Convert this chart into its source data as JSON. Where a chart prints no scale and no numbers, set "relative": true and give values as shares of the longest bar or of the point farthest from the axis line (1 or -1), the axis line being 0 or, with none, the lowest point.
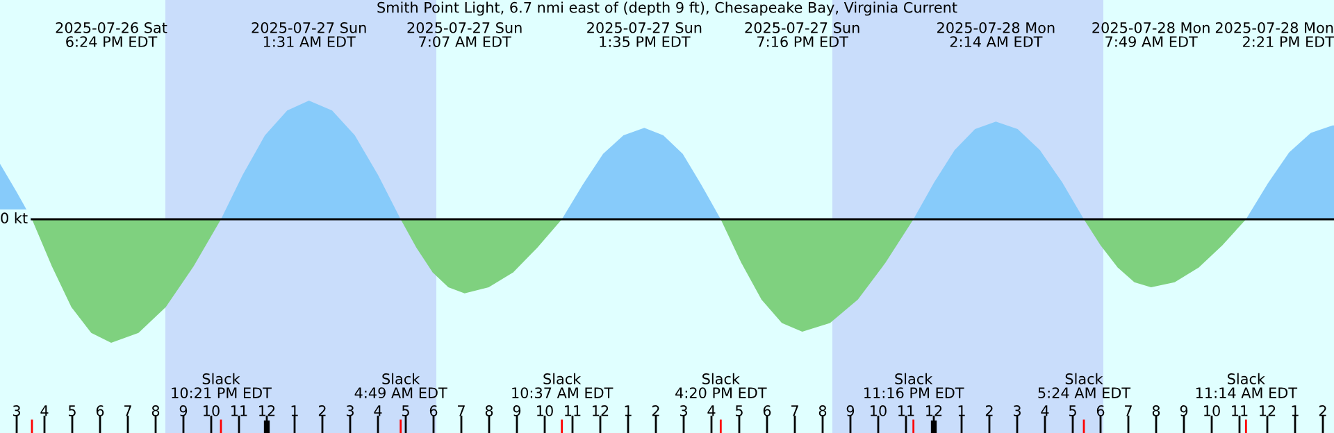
{
  "chart_data": {
    "type": "area",
    "title": "Smith Point Light, 6.7 nmi east of (depth 9 ft), Chesapeake Bay, Virginia Current",
    "relative": true,
    "x": [
      "2025-07-26T14:24",
      "2025-07-26T15:00",
      "2025-07-26T15:33",
      "2025-07-26T16:16",
      "2025-07-26T16:58",
      "2025-07-26T17:41",
      "2025-07-26T18:24",
      "2025-07-26T19:23",
      "2025-07-26T20:22",
      "2025-07-26T21:22",
      "2025-07-26T22:21",
      "2025-07-26T23:08",
      "2025-07-26T23:56",
      "2025-07-27T00:44",
      "2025-07-27T01:31",
      "2025-07-27T02:21",
      "2025-07-27T03:10",
      "2025-07-27T04:00",
      "2025-07-27T04:49",
      "2025-07-27T05:23",
      "2025-07-27T05:58",
      "2025-07-27T06:32",
      "2025-07-27T07:07",
      "2025-07-27T07:59",
      "2025-07-27T08:52",
      "2025-07-27T09:44",
      "2025-07-27T10:37",
      "2025-07-27T11:22",
      "2025-07-27T12:06",
      "2025-07-27T12:50",
      "2025-07-27T13:35",
      "2025-07-27T14:16",
      "2025-07-27T14:58",
      "2025-07-27T15:38",
      "2025-07-27T16:20",
      "2025-07-27T17:04",
      "2025-07-27T17:48",
      "2025-07-27T18:32",
      "2025-07-27T19:16",
      "2025-07-27T20:16",
      "2025-07-27T21:16",
      "2025-07-27T22:16",
      "2025-07-27T23:16",
      "2025-07-28T00:01",
      "2025-07-28T00:45",
      "2025-07-28T01:29",
      "2025-07-28T02:14",
      "2025-07-28T03:01",
      "2025-07-28T03:49",
      "2025-07-28T04:37",
      "2025-07-28T05:24",
      "2025-07-28T06:00",
      "2025-07-28T06:37",
      "2025-07-28T07:13",
      "2025-07-28T07:49",
      "2025-07-28T08:40",
      "2025-07-28T09:32",
      "2025-07-28T10:23",
      "2025-07-28T11:14",
      "2025-07-28T12:01",
      "2025-07-28T12:47",
      "2025-07-28T13:34",
      "2025-07-28T14:21",
      "2025-07-28T14:24"
    ],
    "series": [
      {
        "color": "#87cbfa",
        "values": [
          0.45,
          0.22,
          0,
          null,
          null,
          null,
          null,
          null,
          null,
          null,
          0,
          0.36,
          0.68,
          0.88,
          0.96,
          0.88,
          0.68,
          0.36,
          0,
          null,
          null,
          null,
          null,
          null,
          null,
          null,
          0,
          0.28,
          0.53,
          0.68,
          0.74,
          0.68,
          0.53,
          0.28,
          0,
          null,
          null,
          null,
          null,
          null,
          null,
          null,
          0,
          0.3,
          0.56,
          0.73,
          0.79,
          0.73,
          0.56,
          0.3,
          0,
          null,
          null,
          null,
          null,
          null,
          null,
          null,
          0,
          0.29,
          0.54,
          0.7,
          0.76,
          0.76
        ]
      },
      {
        "color": "#7fd17f",
        "values": [
          null,
          null,
          0,
          -0.38,
          -0.71,
          -0.92,
          -1,
          -0.92,
          -0.71,
          -0.38,
          0,
          null,
          null,
          null,
          null,
          null,
          null,
          null,
          0,
          -0.23,
          -0.43,
          -0.55,
          -0.6,
          -0.55,
          -0.43,
          -0.23,
          0,
          null,
          null,
          null,
          null,
          null,
          null,
          null,
          0,
          -0.35,
          -0.65,
          -0.84,
          -0.91,
          -0.84,
          -0.65,
          -0.35,
          0,
          null,
          null,
          null,
          null,
          null,
          null,
          null,
          0,
          -0.21,
          -0.39,
          -0.51,
          -0.55,
          -0.51,
          -0.39,
          -0.21,
          0,
          null,
          null,
          null,
          null,
          null
        ]
      }
    ],
    "xlim": [
      "2025-07-26T14:24",
      "2025-07-28T14:24"
    ],
    "xticks": [
      {
        "value": "2025-07-26T15:00",
        "label": "3"
      },
      {
        "value": "2025-07-26T16:00",
        "label": "4"
      },
      {
        "value": "2025-07-26T17:00",
        "label": "5"
      },
      {
        "value": "2025-07-26T18:00",
        "label": "6"
      },
      {
        "value": "2025-07-26T19:00",
        "label": "7"
      },
      {
        "value": "2025-07-26T20:00",
        "label": "8"
      },
      {
        "value": "2025-07-26T21:00",
        "label": "9"
      },
      {
        "value": "2025-07-26T22:00",
        "label": "10"
      },
      {
        "value": "2025-07-26T23:00",
        "label": "11"
      },
      {
        "value": "2025-07-27T00:00",
        "label": "12"
      },
      {
        "value": "2025-07-27T01:00",
        "label": "1"
      },
      {
        "value": "2025-07-27T02:00",
        "label": "2"
      },
      {
        "value": "2025-07-27T03:00",
        "label": "3"
      },
      {
        "value": "2025-07-27T04:00",
        "label": "4"
      },
      {
        "value": "2025-07-27T05:00",
        "label": "5"
      },
      {
        "value": "2025-07-27T06:00",
        "label": "6"
      },
      {
        "value": "2025-07-27T07:00",
        "label": "7"
      },
      {
        "value": "2025-07-27T08:00",
        "label": "8"
      },
      {
        "value": "2025-07-27T09:00",
        "label": "9"
      },
      {
        "value": "2025-07-27T10:00",
        "label": "10"
      },
      {
        "value": "2025-07-27T11:00",
        "label": "11"
      },
      {
        "value": "2025-07-27T12:00",
        "label": "12"
      },
      {
        "value": "2025-07-27T13:00",
        "label": "1"
      },
      {
        "value": "2025-07-27T14:00",
        "label": "2"
      },
      {
        "value": "2025-07-27T15:00",
        "label": "3"
      },
      {
        "value": "2025-07-27T16:00",
        "label": "4"
      },
      {
        "value": "2025-07-27T17:00",
        "label": "5"
      },
      {
        "value": "2025-07-27T18:00",
        "label": "6"
      },
      {
        "value": "2025-07-27T19:00",
        "label": "7"
      },
      {
        "value": "2025-07-27T20:00",
        "label": "8"
      },
      {
        "value": "2025-07-27T21:00",
        "label": "9"
      },
      {
        "value": "2025-07-27T22:00",
        "label": "10"
      },
      {
        "value": "2025-07-27T23:00",
        "label": "11"
      },
      {
        "value": "2025-07-28T00:00",
        "label": "12"
      },
      {
        "value": "2025-07-28T01:00",
        "label": "1"
      },
      {
        "value": "2025-07-28T02:00",
        "label": "2"
      },
      {
        "value": "2025-07-28T03:00",
        "label": "3"
      },
      {
        "value": "2025-07-28T04:00",
        "label": "4"
      },
      {
        "value": "2025-07-28T05:00",
        "label": "5"
      },
      {
        "value": "2025-07-28T06:00",
        "label": "6"
      },
      {
        "value": "2025-07-28T07:00",
        "label": "7"
      },
      {
        "value": "2025-07-28T08:00",
        "label": "8"
      },
      {
        "value": "2025-07-28T09:00",
        "label": "9"
      },
      {
        "value": "2025-07-28T10:00",
        "label": "10"
      },
      {
        "value": "2025-07-28T11:00",
        "label": "11"
      },
      {
        "value": "2025-07-28T12:00",
        "label": "12"
      },
      {
        "value": "2025-07-28T13:00",
        "label": "1"
      },
      {
        "value": "2025-07-28T14:00",
        "label": "2"
      }
    ],
    "bands": [
      {
        "axis": "x",
        "from": "2025-07-26T20:21",
        "to": "2025-07-27T06:06",
        "color": "#c9ddfb"
      },
      {
        "axis": "x",
        "from": "2025-07-27T20:21",
        "to": "2025-07-28T06:06",
        "color": "#c9ddfb"
      }
    ],
    "ref_lines": [
      {
        "axis": "y",
        "value": 0,
        "label": "0 kt",
        "color": "#000000"
      }
    ],
    "annotations": [
      "2025-07-26 Sat\n6:24 PM EDT",
      "Slack\n10:21 PM EDT",
      "2025-07-27 Sun\n1:31 AM EDT",
      "Slack\n4:49 AM EDT",
      "2025-07-27 Sun\n7:07 AM EDT",
      "Slack\n10:37 AM EDT",
      "2025-07-27 Sun\n1:35 PM EDT",
      "Slack\n4:20 PM EDT",
      "2025-07-27 Sun\n7:16 PM EDT",
      "Slack\n11:16 PM EDT",
      "2025-07-28 Mon\n2:14 AM EDT",
      "Slack\n5:24 AM EDT",
      "2025-07-28 Mon\n7:49 AM EDT",
      "Slack\n11:14 AM EDT",
      "2025-07-28 Mon\n2:21 PM EDT"
    ]
  }
}
